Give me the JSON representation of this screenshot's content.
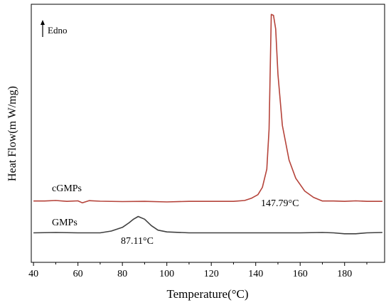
{
  "chart_data": {
    "type": "line",
    "title": "",
    "xlabel": "Temperature(°C)",
    "ylabel": "Heat Flow(m W/mg)",
    "xlim": [
      39,
      198
    ],
    "xticks": [
      40,
      60,
      80,
      100,
      120,
      140,
      160,
      180
    ],
    "yticks_shown": false,
    "grid": false,
    "legend": "none",
    "endo_marker": {
      "label": "Edno",
      "direction": "up"
    },
    "series": [
      {
        "name": "cGMPs",
        "color": "#b5433a",
        "x": [
          40,
          45,
          50,
          55,
          60,
          62,
          65,
          70,
          80,
          90,
          100,
          110,
          120,
          130,
          135,
          138,
          141,
          143,
          145,
          146,
          147,
          148,
          149,
          150,
          152,
          155,
          158,
          162,
          166,
          170,
          175,
          180,
          185,
          190,
          197
        ],
        "y": [
          0.05,
          0.05,
          0.08,
          0.03,
          0.06,
          -0.05,
          0.07,
          0.04,
          0.02,
          0.03,
          0.0,
          0.03,
          0.03,
          0.03,
          0.08,
          0.2,
          0.4,
          0.8,
          1.8,
          4.0,
          10.3,
          10.25,
          9.5,
          7.0,
          4.2,
          2.3,
          1.3,
          0.6,
          0.25,
          0.05,
          0.05,
          0.03,
          0.06,
          0.03,
          0.03
        ],
        "labels": [
          "cGMPs"
        ]
      },
      {
        "name": "GMPs",
        "color": "#404040",
        "x": [
          40,
          50,
          60,
          70,
          75,
          80,
          83,
          85,
          87.11,
          90,
          93,
          96,
          100,
          110,
          120,
          140,
          160,
          170,
          175,
          180,
          185,
          190,
          197
        ],
        "y": [
          -1.7,
          -1.68,
          -1.7,
          -1.7,
          -1.6,
          -1.4,
          -1.15,
          -0.95,
          -0.8,
          -0.95,
          -1.3,
          -1.55,
          -1.65,
          -1.7,
          -1.7,
          -1.7,
          -1.7,
          -1.68,
          -1.7,
          -1.75,
          -1.75,
          -1.7,
          -1.68
        ],
        "labels": [
          "GMPs"
        ]
      }
    ],
    "annotations": [
      "147.79°C",
      "87.11°C"
    ]
  }
}
